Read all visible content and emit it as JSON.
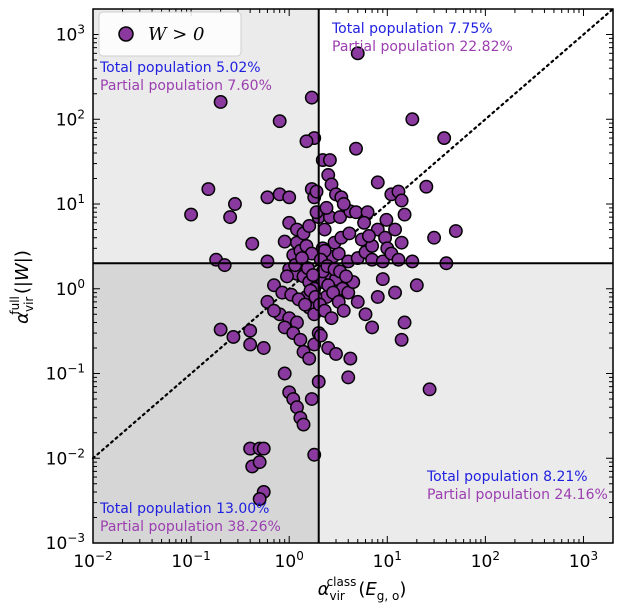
{
  "chart_data": {
    "type": "scatter",
    "title": "",
    "xlabel": "α_vir^class(E_g,o)",
    "ylabel": "α_vir^full(|W|)",
    "xscale": "log",
    "yscale": "log",
    "xlim": [
      0.01,
      2000
    ],
    "ylim": [
      0.001,
      2000
    ],
    "x_tick_labels": [
      "10^-2",
      "10^-1",
      "10^0",
      "10^1",
      "10^2",
      "10^3"
    ],
    "y_tick_labels": [
      "10^-3",
      "10^-2",
      "10^-1",
      "10^0",
      "10^1",
      "10^2",
      "10^3"
    ],
    "threshold_x": 2,
    "threshold_y": 2,
    "reference_line": "y = x (dotted)",
    "legend": {
      "position": "top-left",
      "entries": [
        "W > 0"
      ]
    },
    "colors": {
      "marker_fill": "#8a3a9e",
      "marker_edge": "#000000",
      "total_text": "#1f1fe0",
      "partial_text": "#9b3fb0",
      "shade_light": "#ebebeb",
      "shade_dark": "#d6d6d6"
    },
    "annotations": [
      {
        "quadrant": "top-left",
        "total": "Total population 5.02%",
        "partial": "Partial population 7.60%"
      },
      {
        "quadrant": "top-right",
        "total": "Total population 7.75%",
        "partial": "Partial population 22.82%"
      },
      {
        "quadrant": "bottom-left",
        "total": "Total population 13.00%",
        "partial": "Partial population 38.26%"
      },
      {
        "quadrant": "bottom-right",
        "total": "Total population 8.21%",
        "partial": "Partial population 24.16%"
      }
    ],
    "series": [
      {
        "name": "W > 0",
        "points": [
          [
            0.2,
            160
          ],
          [
            1.7,
            180
          ],
          [
            5,
            600
          ],
          [
            18,
            100
          ],
          [
            38,
            60
          ],
          [
            0.8,
            95
          ],
          [
            1.8,
            60
          ],
          [
            1.5,
            55
          ],
          [
            4.8,
            45
          ],
          [
            2.2,
            33
          ],
          [
            2.6,
            33
          ],
          [
            2.5,
            22
          ],
          [
            2.7,
            17
          ],
          [
            3,
            13
          ],
          [
            3.4,
            12
          ],
          [
            8,
            18
          ],
          [
            11,
            13
          ],
          [
            13,
            14
          ],
          [
            14,
            11
          ],
          [
            25,
            16
          ],
          [
            0.15,
            15
          ],
          [
            0.28,
            10
          ],
          [
            0.25,
            7
          ],
          [
            0.1,
            7.5
          ],
          [
            0.6,
            12
          ],
          [
            0.8,
            13
          ],
          [
            1,
            12
          ],
          [
            1.7,
            15
          ],
          [
            1.8,
            12
          ],
          [
            1.9,
            14
          ],
          [
            0.18,
            2.2
          ],
          [
            0.22,
            1.9
          ],
          [
            0.42,
            3.4
          ],
          [
            0.9,
            3.6
          ],
          [
            1.2,
            3.5
          ],
          [
            0.6,
            2.1
          ],
          [
            2,
            7
          ],
          [
            2.3,
            5
          ],
          [
            2.6,
            7
          ],
          [
            3.3,
            7
          ],
          [
            4.2,
            8.2
          ],
          [
            4.8,
            8
          ],
          [
            6.3,
            8
          ],
          [
            8,
            5
          ],
          [
            9.5,
            4
          ],
          [
            12,
            5
          ],
          [
            14,
            3.5
          ],
          [
            15,
            7.5
          ],
          [
            30,
            4
          ],
          [
            50,
            4.8
          ],
          [
            40,
            2
          ],
          [
            2.2,
            3
          ],
          [
            2.8,
            2.4
          ],
          [
            3.2,
            2.6
          ],
          [
            4,
            2.1
          ],
          [
            5,
            2.3
          ],
          [
            6,
            2.7
          ],
          [
            7,
            2.2
          ],
          [
            9,
            2.1
          ],
          [
            10,
            3
          ],
          [
            11,
            2.6
          ],
          [
            13,
            2.2
          ],
          [
            18,
            2.1
          ],
          [
            0.2,
            0.33
          ],
          [
            0.27,
            0.27
          ],
          [
            0.4,
            0.32
          ],
          [
            0.4,
            0.22
          ],
          [
            0.55,
            0.2
          ],
          [
            0.8,
            0.5
          ],
          [
            1,
            0.45
          ],
          [
            1.2,
            0.4
          ],
          [
            1.5,
            0.8
          ],
          [
            1.6,
            0.6
          ],
          [
            1.8,
            0.5
          ],
          [
            2,
            0.3
          ],
          [
            2.2,
            1.2
          ],
          [
            2.4,
            0.8
          ],
          [
            2.6,
            1.5
          ],
          [
            3,
            1.3
          ],
          [
            3.5,
            1
          ],
          [
            4,
            0.9
          ],
          [
            4.5,
            1.2
          ],
          [
            5,
            0.7
          ],
          [
            6,
            0.5
          ],
          [
            7,
            0.35
          ],
          [
            8,
            0.8
          ],
          [
            9,
            1.3
          ],
          [
            12,
            0.9
          ],
          [
            15,
            0.4
          ],
          [
            20,
            1.1
          ],
          [
            14,
            0.25
          ],
          [
            0.6,
            0.7
          ],
          [
            0.7,
            0.55
          ],
          [
            0.9,
            0.35
          ],
          [
            1.1,
            0.3
          ],
          [
            1.3,
            0.25
          ],
          [
            1.4,
            0.18
          ],
          [
            1.6,
            0.15
          ],
          [
            1.8,
            0.22
          ],
          [
            2.1,
            0.28
          ],
          [
            2.5,
            0.2
          ],
          [
            3,
            0.17
          ],
          [
            4,
            0.09
          ],
          [
            4.2,
            0.15
          ],
          [
            0.9,
            0.1
          ],
          [
            1,
            0.06
          ],
          [
            1.1,
            0.05
          ],
          [
            1.2,
            0.04
          ],
          [
            1.3,
            0.03
          ],
          [
            1.4,
            0.025
          ],
          [
            1.7,
            0.05
          ],
          [
            2,
            0.08
          ],
          [
            1.8,
            0.011
          ],
          [
            27,
            0.065
          ],
          [
            0.4,
            0.013
          ],
          [
            0.5,
            0.013
          ],
          [
            0.55,
            0.013
          ],
          [
            0.42,
            0.008
          ],
          [
            0.5,
            0.009
          ],
          [
            0.55,
            0.004
          ],
          [
            0.5,
            0.0033
          ],
          [
            1.0,
            1.7
          ],
          [
            1.2,
            1.5
          ],
          [
            1.4,
            1.4
          ],
          [
            1.6,
            1.2
          ],
          [
            1.8,
            1.0
          ],
          [
            2.2,
            1.6
          ],
          [
            2.5,
            1.1
          ],
          [
            2.8,
            0.9
          ],
          [
            3.2,
            0.7
          ],
          [
            3.6,
            0.55
          ],
          [
            1.1,
            2.5
          ],
          [
            1.3,
            2.8
          ],
          [
            1.5,
            3.2
          ],
          [
            1.7,
            2.6
          ],
          [
            2.3,
            2.8
          ],
          [
            2.9,
            3.5
          ],
          [
            3.4,
            4
          ],
          [
            4.1,
            4.5
          ],
          [
            5.5,
            3.8
          ],
          [
            7,
            3.2
          ],
          [
            0.7,
            1.1
          ],
          [
            0.85,
            0.9
          ],
          [
            1.05,
            0.85
          ],
          [
            1.25,
            0.75
          ],
          [
            1.45,
            0.65
          ],
          [
            1.65,
            0.95
          ],
          [
            1.85,
            0.8
          ],
          [
            2.05,
            0.65
          ],
          [
            2.3,
            0.55
          ],
          [
            2.7,
            0.45
          ],
          [
            1.0,
            6
          ],
          [
            1.2,
            5
          ],
          [
            1.4,
            4.5
          ],
          [
            1.6,
            5.5
          ],
          [
            1.9,
            8
          ],
          [
            2.4,
            9
          ],
          [
            3.6,
            10
          ],
          [
            5.8,
            6
          ],
          [
            6.5,
            4.2
          ],
          [
            9.8,
            6.5
          ],
          [
            0.95,
            1.4
          ],
          [
            1.15,
            1.9
          ],
          [
            1.35,
            2.3
          ],
          [
            1.55,
            1.75
          ],
          [
            1.75,
            1.45
          ],
          [
            2.1,
            2.2
          ],
          [
            2.45,
            1.85
          ],
          [
            2.9,
            1.7
          ],
          [
            3.3,
            1.6
          ],
          [
            3.8,
            1.4
          ]
        ]
      }
    ]
  }
}
